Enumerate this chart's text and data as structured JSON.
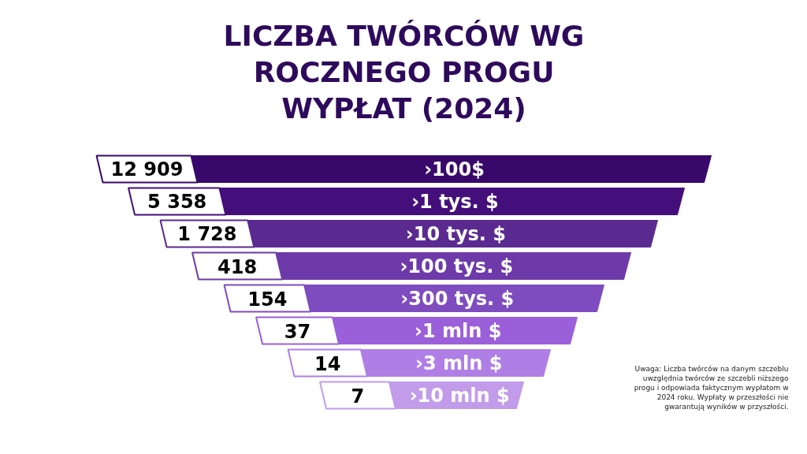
{
  "chart_data": {
    "type": "other",
    "title": "LICZBA TWÓRCÓW WG ROCZNEGO PROGU WYPŁAT (2024)",
    "categories": [
      "›100$",
      "›1 tys. $",
      "›10 tys. $",
      "›100 tys. $",
      "›300 tys. $",
      "›1 mln $",
      "›3 mln $",
      "›10 mln $"
    ],
    "values": [
      12909,
      5358,
      1728,
      418,
      154,
      37,
      14,
      7
    ],
    "colors": [
      "#38096a",
      "#440f7a",
      "#5a2a91",
      "#6e3aa9",
      "#7e4cbf",
      "#9b5fd9",
      "#b07fe5",
      "#c29ceb"
    ],
    "data_labels": true,
    "annotations": [
      "Uwaga: Liczba twórców na danym szczeblu uwzględnia twórców ze szczebli niższego progu i odpowiada faktycznym wypłatom w 2024 roku. Wypłaty w przeszłości nie gwarantują wyników w przyszłości."
    ]
  }
}
